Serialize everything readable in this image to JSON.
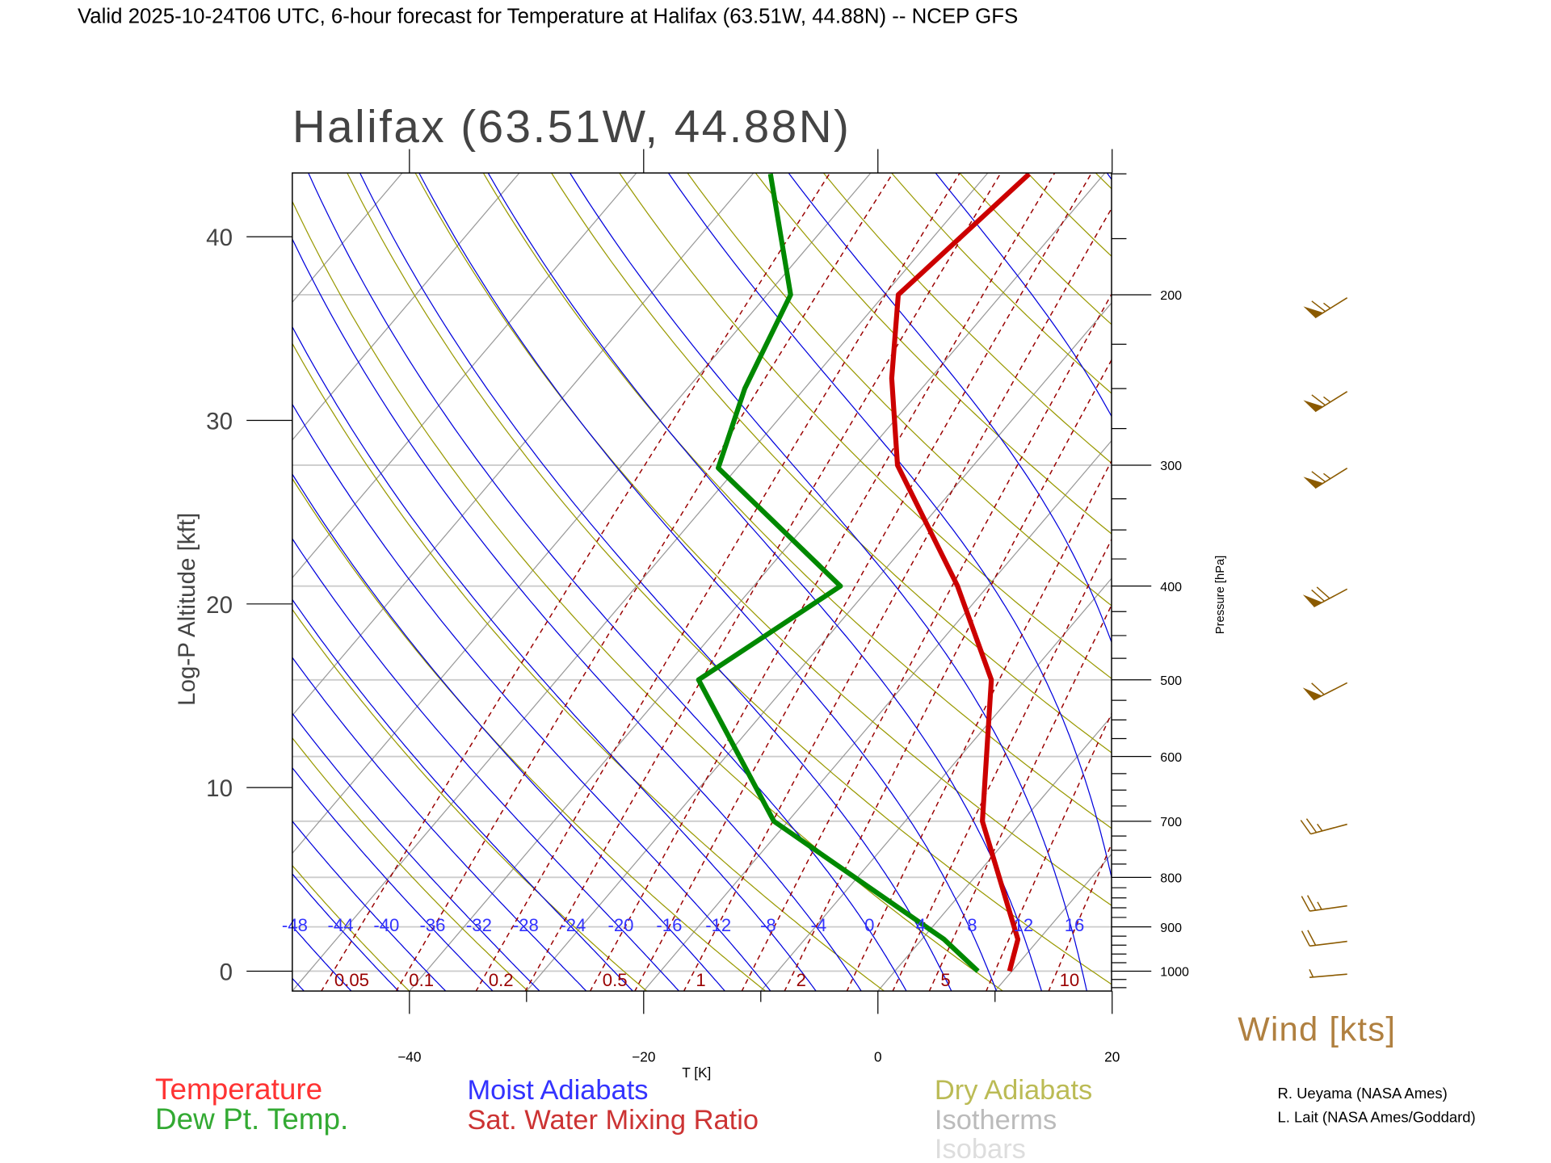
{
  "chart_data": {
    "type": "line",
    "subtype": "skew-T log-P diagram",
    "header": "Valid 2025-10-24T06 UTC, 6-hour forecast for Temperature at Halifax (63.51W, 44.88N) -- NCEP GFS",
    "title": "Halifax (63.51W, 44.88N)",
    "xlabel": "T [K]",
    "ylabel_left": "Log-P Altitude [kft]",
    "ylabel_right": "Pressure [hPa]",
    "x_ticks": [
      -40,
      -20,
      0,
      20
    ],
    "x_range": [
      -50,
      20
    ],
    "pressure_range": [
      1048,
      150
    ],
    "altitude_ticks": [
      0,
      10,
      20,
      30,
      40
    ],
    "pressure_ticks": [
      1000,
      900,
      800,
      700,
      600,
      500,
      400,
      300,
      200
    ],
    "series": [
      {
        "name": "Temperature",
        "color": "#cc0000",
        "p": [
          1000,
          927,
          700,
          500,
          400,
          300,
          244,
          200,
          150
        ],
        "t": [
          9.8,
          8.2,
          -3.4,
          -12.9,
          -22.6,
          -36.5,
          -43.3,
          -48.8,
          -46.4
        ]
      },
      {
        "name": "Dew Pt. Temp.",
        "color": "#008800",
        "p": [
          1000,
          927,
          700,
          500,
          400,
          302,
          250,
          200,
          150
        ],
        "t": [
          7.1,
          1.9,
          -21.2,
          -37.9,
          -32.6,
          -51.6,
          -55.1,
          -58.0,
          -68.5
        ]
      }
    ],
    "moist_adiabats": {
      "color": "#0000dd",
      "labels": [
        -48,
        -44,
        -40,
        -36,
        -32,
        -28,
        -24,
        -20,
        -16,
        -12,
        -8,
        -4,
        0,
        4,
        8,
        12,
        16
      ]
    },
    "mixing_ratio": {
      "color": "#990000",
      "labels": [
        "0.05",
        "0.1",
        "0.2",
        "0.5",
        "1",
        "2",
        "5",
        "10"
      ]
    },
    "dry_adiabats": {
      "color": "#999900"
    },
    "isotherms": {
      "color": "#999999"
    },
    "isobars": {
      "color": "#cccccc"
    },
    "wind": {
      "label": "Wind [kts]",
      "color": "#8b5a00",
      "p": [
        1000,
        925,
        850,
        700,
        500,
        400,
        300,
        250,
        200
      ],
      "speed": [
        5,
        20,
        25,
        25,
        60,
        70,
        65,
        65,
        65
      ],
      "direction": [
        265,
        263,
        262,
        255,
        243,
        242,
        238,
        238,
        238
      ]
    },
    "legend": [
      {
        "label": "Temperature",
        "color": "#ff3333"
      },
      {
        "label": "Dew Pt. Temp.",
        "color": "#33aa33"
      },
      {
        "label": "Moist Adiabats",
        "color": "#3333ff"
      },
      {
        "label": "Sat. Water Mixing Ratio",
        "color": "#cc3333"
      },
      {
        "label": "Dry Adiabats",
        "color": "#bbbb55"
      },
      {
        "label": "Isotherms",
        "color": "#bbbbbb"
      },
      {
        "label": "Isobars",
        "color": "#dddddd"
      }
    ],
    "credits": [
      "R. Ueyama (NASA Ames)",
      "L. Lait (NASA Ames/Goddard)"
    ]
  }
}
